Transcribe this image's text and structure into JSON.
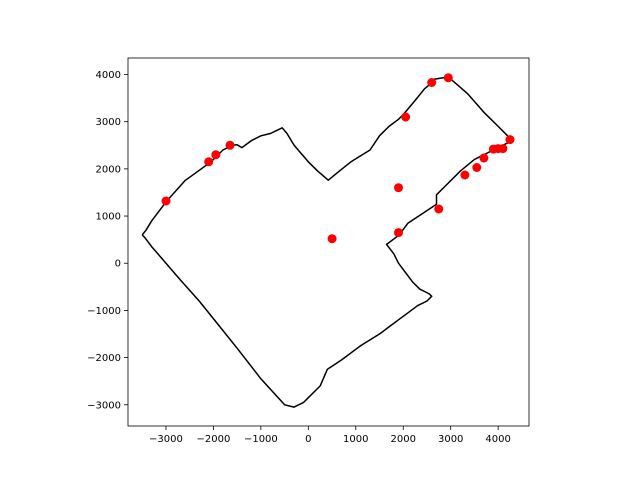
{
  "chart_data": {
    "type": "scatter",
    "title": "",
    "xlabel": "",
    "ylabel": "",
    "xlim": [
      -3800,
      4650
    ],
    "ylim": [
      -3450,
      4350
    ],
    "grid": false,
    "legend": "none",
    "xticks": [
      -3000,
      -2000,
      -1000,
      0,
      1000,
      2000,
      3000,
      4000
    ],
    "yticks": [
      -3000,
      -2000,
      -1000,
      0,
      1000,
      2000,
      3000,
      4000
    ],
    "xtick_labels": [
      "−3000",
      "−2000",
      "−1000",
      "0",
      "1000",
      "2000",
      "3000",
      "4000"
    ],
    "ytick_labels": [
      "−3000",
      "−2000",
      "−1000",
      "0",
      "1000",
      "2000",
      "3000",
      "4000"
    ],
    "line_color": "#000000",
    "point_color": "#ff0000",
    "path": {
      "x": [
        -3500,
        -3420,
        -3300,
        -3000,
        -2600,
        -2050,
        -1900,
        -1800,
        -1600,
        -1500,
        -1400,
        -1200,
        -1000,
        -800,
        -550,
        -450,
        -300,
        0,
        200,
        420,
        650,
        900,
        1300,
        1500,
        1700,
        1900,
        2000,
        2250,
        2450,
        2600,
        2650,
        2950,
        3350,
        3700,
        4000,
        4200,
        4300,
        4200,
        3900,
        3500,
        3200,
        2900,
        2700,
        2700,
        2400,
        2100,
        1950,
        1850,
        1650,
        1800,
        1900,
        2050,
        2200,
        2350,
        2450,
        2550,
        2600,
        2500,
        2300,
        2100,
        1900,
        1700,
        1500,
        1100,
        700,
        400,
        250,
        0,
        -100,
        -300,
        -500,
        -1000,
        -1500,
        -1900,
        -2300,
        -2700,
        -3000,
        -3300,
        -3450,
        -3500
      ],
      "y": [
        600,
        700,
        900,
        1300,
        1750,
        2150,
        2300,
        2400,
        2500,
        2510,
        2450,
        2600,
        2700,
        2750,
        2870,
        2750,
        2500,
        2150,
        1950,
        1760,
        1950,
        2150,
        2400,
        2700,
        2900,
        3050,
        3150,
        3450,
        3700,
        3820,
        3900,
        3950,
        3600,
        3200,
        2900,
        2700,
        2620,
        2550,
        2400,
        2200,
        1950,
        1650,
        1450,
        1250,
        1050,
        850,
        650,
        550,
        400,
        200,
        0,
        -200,
        -400,
        -550,
        -600,
        -650,
        -700,
        -800,
        -900,
        -1050,
        -1200,
        -1350,
        -1500,
        -1750,
        -2050,
        -2250,
        -2600,
        -2850,
        -2950,
        -3050,
        -3000,
        -2450,
        -1800,
        -1300,
        -800,
        -350,
        0,
        350,
        550,
        600
      ]
    },
    "points": {
      "x": [
        -3000,
        -2100,
        -1950,
        -1650,
        500,
        1900,
        1900,
        2050,
        2600,
        2750,
        2950,
        3300,
        3550,
        3700,
        3900,
        4000,
        4100,
        4250
      ],
      "y": [
        1320,
        2150,
        2300,
        2500,
        520,
        1600,
        650,
        3100,
        3830,
        1150,
        3930,
        1870,
        2030,
        2230,
        2420,
        2430,
        2430,
        2620
      ]
    }
  }
}
